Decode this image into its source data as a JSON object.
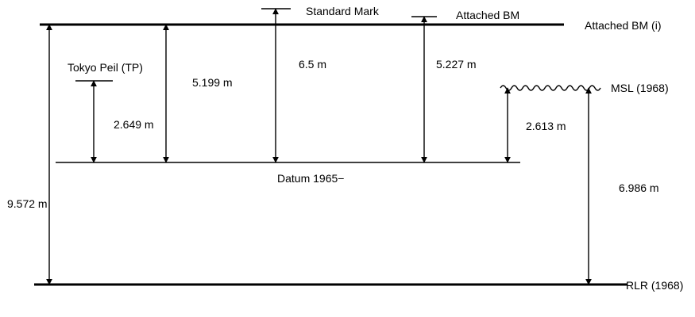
{
  "levels": {
    "attached_bm_i": "Attached BM (i)",
    "rlr": "RLR (1968)",
    "datum": "Datum 1965−",
    "msl": "MSL (1968)",
    "tokyo_peil": "Tokyo Peil (TP)",
    "standard_mark": "Standard Mark",
    "attached_bm": "Attached BM"
  },
  "measurements": {
    "bm_i_to_rlr": "9.572 m",
    "tp_to_datum": "2.649 m",
    "bm_i_to_datum": "5.199 m",
    "standard_mark_to_datum": "6.5 m",
    "attached_bm_to_datum": "5.227 m",
    "msl_to_datum": "2.613 m",
    "msl_to_rlr": "6.986 m"
  }
}
